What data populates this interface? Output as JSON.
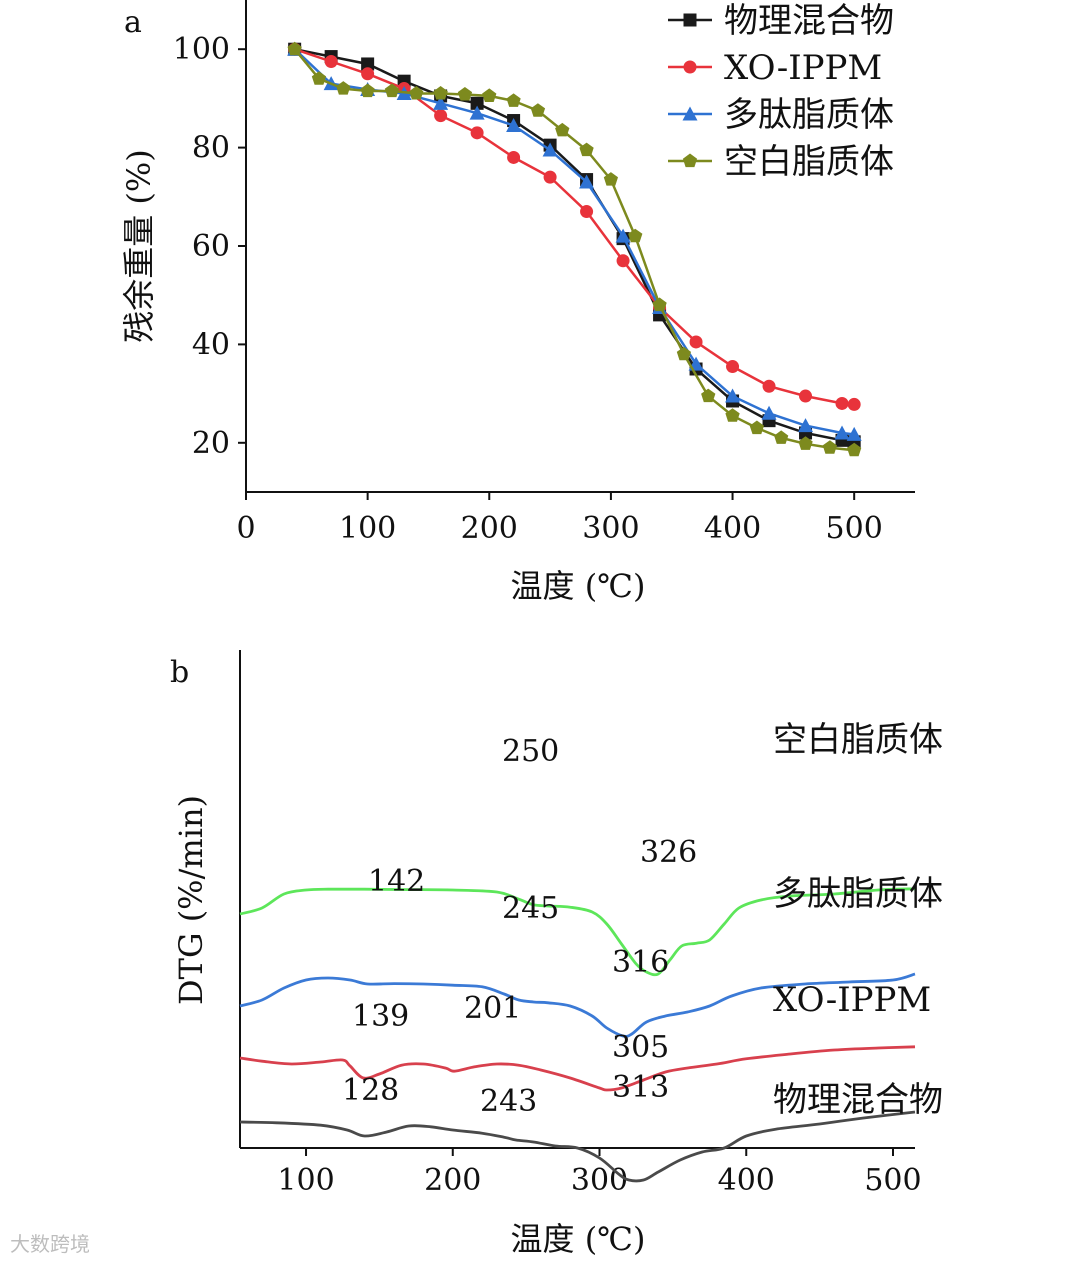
{
  "chart_data": [
    {
      "type": "line",
      "panel": "a",
      "xlabel": "温度 (℃)",
      "ylabel": "残余重量 (%)",
      "xlim": [
        0,
        550
      ],
      "ylim": [
        10,
        110
      ],
      "xticks": [
        0,
        100,
        200,
        300,
        400,
        500
      ],
      "yticks": [
        20,
        40,
        60,
        80,
        100
      ],
      "legend_position": "top-right",
      "series": [
        {
          "name": "物理混合物",
          "color": "#1a1a1a",
          "marker": "square",
          "x": [
            40,
            70,
            100,
            130,
            160,
            190,
            220,
            250,
            280,
            310,
            340,
            370,
            400,
            430,
            460,
            490,
            500
          ],
          "y": [
            100,
            98.5,
            97,
            93.5,
            90.5,
            89,
            85.5,
            80.5,
            73.5,
            61.5,
            46,
            35,
            28.5,
            24.5,
            22,
            20.5,
            20.2
          ]
        },
        {
          "name": "XO-IPPM",
          "color": "#e8333b",
          "marker": "circle",
          "x": [
            40,
            70,
            100,
            130,
            160,
            190,
            220,
            250,
            280,
            310,
            340,
            370,
            400,
            430,
            460,
            490,
            500
          ],
          "y": [
            100,
            97.5,
            95,
            92,
            86.5,
            83,
            78,
            74,
            67,
            57,
            47.5,
            40.5,
            35.5,
            31.5,
            29.5,
            28,
            27.8
          ]
        },
        {
          "name": "多肽脂质体",
          "color": "#2e72d2",
          "marker": "triangle",
          "x": [
            40,
            70,
            100,
            130,
            160,
            190,
            220,
            250,
            280,
            310,
            340,
            370,
            400,
            430,
            460,
            490,
            500
          ],
          "y": [
            100,
            93,
            91.8,
            91,
            89,
            87,
            84.5,
            79.5,
            73,
            62,
            47.5,
            36,
            29.5,
            26,
            23.5,
            22,
            21.7
          ]
        },
        {
          "name": "空白脂质体",
          "color": "#7d8a1e",
          "marker": "pentagon",
          "x": [
            40,
            60,
            80,
            100,
            120,
            140,
            160,
            180,
            200,
            220,
            240,
            260,
            280,
            300,
            320,
            340,
            360,
            380,
            400,
            420,
            440,
            460,
            480,
            500
          ],
          "y": [
            100,
            94,
            92,
            91.5,
            91.5,
            91,
            91,
            90.8,
            90.5,
            89.5,
            87.5,
            83.5,
            79.5,
            73.5,
            62,
            48,
            38,
            29.5,
            25.5,
            23,
            21,
            19.8,
            19,
            18.5
          ]
        }
      ]
    },
    {
      "type": "line",
      "panel": "b",
      "xlabel": "温度 (℃)",
      "ylabel": "DTG (%/min)",
      "xlim": [
        55,
        515
      ],
      "xticks": [
        100,
        200,
        300,
        400,
        500
      ],
      "yticks": [],
      "series": [
        {
          "name": "空白脂质体",
          "color": "#5de65a",
          "offset": 3.3,
          "x": [
            55,
            70,
            85,
            100,
            115,
            140,
            170,
            200,
            230,
            245,
            255,
            265,
            280,
            295,
            305,
            315,
            325,
            332,
            340,
            348,
            356,
            366,
            375,
            385,
            395,
            410,
            430,
            460,
            490,
            515
          ],
          "y": [
            0.35,
            0.5,
            0.85,
            0.95,
            0.97,
            0.97,
            0.96,
            0.95,
            0.9,
            0.72,
            0.58,
            0.55,
            0.52,
            0.4,
            0.1,
            -0.4,
            -0.9,
            -1.1,
            -1.15,
            -0.8,
            -0.45,
            -0.38,
            -0.3,
            0.1,
            0.5,
            0.7,
            0.8,
            0.85,
            0.95,
            0.98
          ]
        },
        {
          "name": "多肽脂质体",
          "color": "#3b7ad6",
          "offset": 1.05,
          "x": [
            55,
            70,
            85,
            100,
            115,
            130,
            142,
            160,
            180,
            200,
            220,
            235,
            245,
            255,
            265,
            280,
            295,
            305,
            316,
            322,
            332,
            345,
            360,
            375,
            390,
            410,
            440,
            470,
            500,
            515
          ],
          "y": [
            0.3,
            0.45,
            0.75,
            0.95,
            1.0,
            0.95,
            0.85,
            0.86,
            0.85,
            0.82,
            0.78,
            0.6,
            0.45,
            0.4,
            0.38,
            0.3,
            0.05,
            -0.25,
            -0.45,
            -0.4,
            -0.1,
            0.05,
            0.15,
            0.3,
            0.55,
            0.75,
            0.85,
            0.9,
            0.95,
            1.1
          ]
        },
        {
          "name": "XO-IPPM",
          "color": "#d8404d",
          "offset": -0.25,
          "x": [
            55,
            70,
            90,
            110,
            125,
            130,
            139,
            150,
            165,
            180,
            195,
            201,
            215,
            230,
            245,
            260,
            280,
            300,
            305,
            315,
            330,
            345,
            360,
            380,
            400,
            430,
            460,
            490,
            515
          ],
          "y": [
            0.3,
            0.22,
            0.15,
            0.2,
            0.25,
            0.1,
            -0.2,
            -0.1,
            0.12,
            0.15,
            0.05,
            -0.03,
            0.08,
            0.15,
            0.12,
            0.0,
            -0.2,
            -0.45,
            -0.5,
            -0.45,
            -0.25,
            -0.05,
            0.05,
            0.15,
            0.28,
            0.4,
            0.5,
            0.55,
            0.58
          ]
        },
        {
          "name": "物理混合物",
          "color": "#4a4a4a",
          "offset": -1.85,
          "x": [
            55,
            80,
            110,
            128,
            140,
            155,
            170,
            185,
            200,
            220,
            235,
            243,
            255,
            270,
            285,
            300,
            313,
            320,
            330,
            340,
            355,
            370,
            385,
            400,
            420,
            450,
            480,
            515
          ],
          "y": [
            0.3,
            0.28,
            0.22,
            0.1,
            -0.05,
            0.05,
            0.2,
            0.18,
            0.1,
            0.02,
            -0.08,
            -0.15,
            -0.2,
            -0.3,
            -0.35,
            -0.6,
            -1.0,
            -1.15,
            -1.15,
            -0.95,
            -0.65,
            -0.45,
            -0.35,
            -0.05,
            0.12,
            0.25,
            0.4,
            0.55
          ]
        }
      ],
      "curve_labels": [
        "空白脂质体",
        "多肽脂质体",
        "XO-IPPM",
        "物理混合物"
      ],
      "peak_labels": [
        "250",
        "326",
        "142",
        "245",
        "316",
        "139",
        "201",
        "305",
        "128",
        "243",
        "313"
      ]
    }
  ],
  "panel_a": {
    "letter": "a"
  },
  "panel_b": {
    "letter": "b"
  },
  "watermark": "大数跨境"
}
